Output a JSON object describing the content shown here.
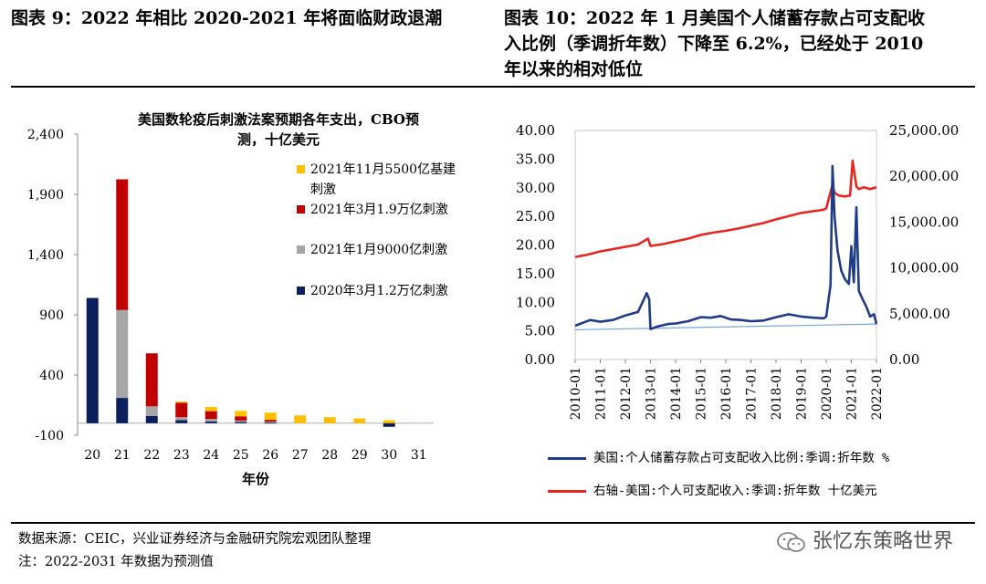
{
  "left": {
    "figure_title": "图表 9：2022 年相比 2020-2021 年将面临财政退潮",
    "chart_data": {
      "type": "bar",
      "stacked": true,
      "title": "美国数轮疫后刺激法案预期各年支出，CBO预测，十亿美元",
      "title_line1": "美国数轮疫后刺激法案预期各年支出，CBO预",
      "title_line2": "测，十亿美元",
      "xlabel": "年份",
      "categories": [
        "20",
        "21",
        "22",
        "23",
        "24",
        "25",
        "26",
        "27",
        "28",
        "29",
        "30",
        "31"
      ],
      "yticks": [
        "2,400",
        "1,900",
        "1,400",
        "900",
        "400",
        "-100"
      ],
      "ylim": [
        -100,
        2400
      ],
      "series": [
        {
          "name": "2020年3月1.2万亿刺激",
          "color": "#0a1f5c",
          "values": [
            1040,
            210,
            60,
            25,
            15,
            10,
            5,
            0,
            0,
            0,
            -30,
            0
          ]
        },
        {
          "name": "2021年1月9000亿刺激",
          "color": "#a6a6a6",
          "values": [
            0,
            730,
            80,
            25,
            20,
            12,
            8,
            0,
            0,
            0,
            0,
            0
          ]
        },
        {
          "name": "2021年3月1.9万亿刺激",
          "color": "#c00000",
          "values": [
            0,
            1085,
            440,
            120,
            65,
            35,
            15,
            0,
            0,
            0,
            0,
            0
          ]
        },
        {
          "name": "2021年11月5500亿基建刺激",
          "color": "#ffc000",
          "values": [
            0,
            0,
            0,
            10,
            35,
            45,
            60,
            65,
            50,
            40,
            25,
            0
          ]
        }
      ],
      "legend": [
        {
          "label": "2021年11月5500亿基建",
          "label2": "刺激",
          "color": "#ffc000"
        },
        {
          "label": "2021年3月1.9万亿刺激",
          "color": "#c00000"
        },
        {
          "label": "2021年1月9000亿刺激",
          "color": "#a6a6a6"
        },
        {
          "label": "2020年3月1.2万亿刺激",
          "color": "#0a1f5c"
        }
      ]
    }
  },
  "right": {
    "figure_title": "图表 10：2022 年 1 月美国个人储蓄存款占可支配收入比例（季调折年数）下降至 6.2%，已经处于 2010 年以来的相对低位",
    "title_line1": "图表 10：2022 年 1 月美国个人储蓄存款占可支配收",
    "title_line2": "入比例（季调折年数）下降至 6.2%，已经处于 2010",
    "title_line3": "年以来的相对低位",
    "chart_data": {
      "type": "line",
      "x_labels": [
        "2010-01",
        "2011-01",
        "2012-01",
        "2013-01",
        "2014-01",
        "2015-01",
        "2016-01",
        "2017-01",
        "2018-01",
        "2019-01",
        "2020-01",
        "2021-01",
        "2022-01"
      ],
      "y_left_ticks": [
        "40.00",
        "35.00",
        "30.00",
        "25.00",
        "20.00",
        "15.00",
        "10.00",
        "5.00",
        "0.00"
      ],
      "y_left_lim": [
        0,
        40
      ],
      "y_right_ticks": [
        "25,000.00",
        "20,000.00",
        "15,000.00",
        "10,000.00",
        "5,000.00",
        "0.00"
      ],
      "y_right_lim": [
        0,
        25000
      ],
      "series": [
        {
          "name": "美国:个人储蓄存款占可支配收入比例:季调:折年数 %",
          "axis": "left",
          "color": "#1f3c88",
          "x": [
            2010.0,
            2010.3,
            2010.6,
            2011.0,
            2011.5,
            2012.0,
            2012.5,
            2012.85,
            2012.95,
            2013.0,
            2013.3,
            2013.7,
            2014.0,
            2014.5,
            2015.0,
            2015.4,
            2015.8,
            2016.2,
            2016.6,
            2017.0,
            2017.5,
            2018.0,
            2018.5,
            2019.0,
            2019.5,
            2019.9,
            2020.0,
            2020.17,
            2020.25,
            2020.33,
            2020.45,
            2020.6,
            2020.75,
            2020.9,
            2021.0,
            2021.1,
            2021.2,
            2021.3,
            2021.45,
            2021.6,
            2021.75,
            2021.9,
            2022.0
          ],
          "y": [
            5.9,
            6.4,
            6.9,
            6.6,
            6.9,
            7.7,
            8.3,
            11.6,
            10.5,
            5.3,
            5.8,
            6.2,
            6.3,
            6.7,
            7.4,
            7.3,
            7.6,
            7.0,
            6.9,
            6.7,
            6.8,
            7.4,
            7.9,
            7.5,
            7.3,
            7.2,
            7.5,
            13.0,
            33.8,
            25.0,
            19.0,
            15.5,
            14.0,
            13.2,
            19.8,
            13.5,
            26.6,
            12.0,
            10.5,
            9.2,
            7.5,
            7.9,
            6.2
          ]
        },
        {
          "name": "右轴-美国:个人可支配收入:季调:折年数 十亿美元",
          "axis": "right",
          "color": "#e8251e",
          "x": [
            2010.0,
            2010.5,
            2011.0,
            2011.5,
            2012.0,
            2012.5,
            2012.9,
            2013.0,
            2013.5,
            2014.0,
            2014.5,
            2015.0,
            2015.5,
            2016.0,
            2016.5,
            2017.0,
            2017.5,
            2018.0,
            2018.5,
            2019.0,
            2019.5,
            2019.9,
            2020.0,
            2020.25,
            2020.33,
            2020.5,
            2020.75,
            2020.95,
            2021.05,
            2021.2,
            2021.3,
            2021.5,
            2021.75,
            2022.0
          ],
          "y": [
            11200,
            11450,
            11800,
            12050,
            12300,
            12550,
            13200,
            12400,
            12600,
            12900,
            13200,
            13600,
            13850,
            14050,
            14300,
            14600,
            14900,
            15300,
            15650,
            16000,
            16200,
            16350,
            16500,
            19100,
            18200,
            17900,
            17800,
            17900,
            21700,
            18900,
            18600,
            18800,
            18600,
            18800
          ]
        },
        {
          "name": "trend",
          "axis": "left",
          "color": "#6fa8dc",
          "x": [
            2010.0,
            2022.0
          ],
          "y": [
            5.2,
            6.2
          ]
        }
      ],
      "legend": [
        {
          "label": "美国:个人储蓄存款占可支配收入比例:季调:折年数 %",
          "color": "#1f3c88"
        },
        {
          "label": "右轴-美国:个人可支配收入:季调:折年数 十亿美元",
          "color": "#e8251e"
        }
      ]
    }
  },
  "footer": {
    "source": "数据来源：CEIC，兴业证券经济与金融研究院宏观团队整理",
    "note": "注：2022-2031 年数据为预测值",
    "watermark": "张忆东策略世界"
  }
}
